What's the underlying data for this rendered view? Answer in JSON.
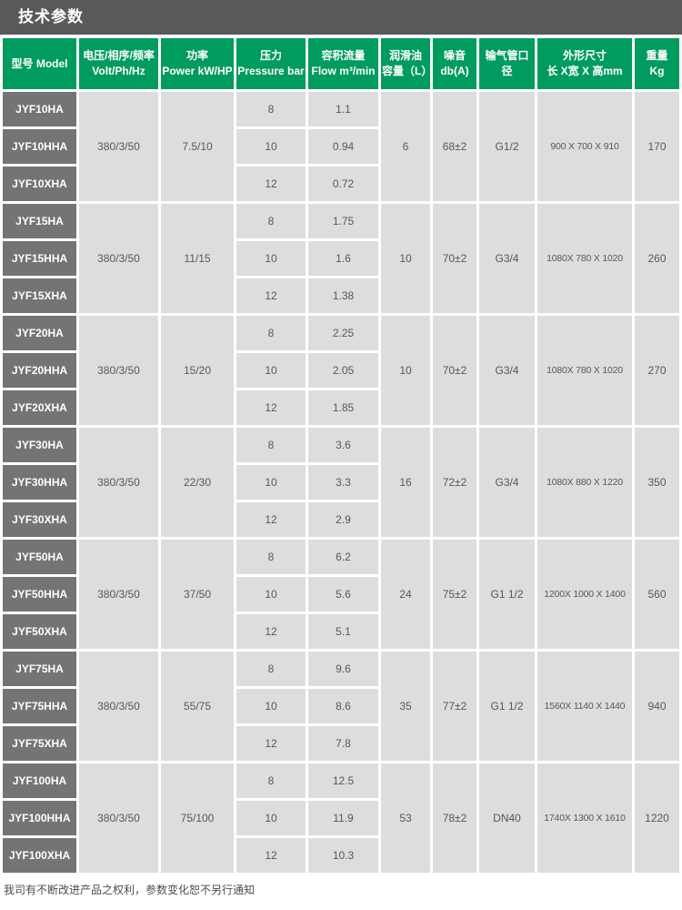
{
  "title_bar": {
    "title": "技术参数"
  },
  "footer": {
    "note": "我司有不断改进产品之权利，参数变化恕不另行通知"
  },
  "colors": {
    "title_bar_bg": "#58595B",
    "header_green": "#009B5E",
    "model_cell_bg": "#747477",
    "data_cell_bg": "#DCDDDD",
    "data_text": "#57585A",
    "footer_text": "#4C4D4F"
  },
  "table": {
    "columns": [
      {
        "id": "model",
        "lines": [
          "型号 Model"
        ]
      },
      {
        "id": "voltage",
        "lines": [
          "电压/相序/频率",
          "Volt/Ph/Hz"
        ]
      },
      {
        "id": "power",
        "lines": [
          "功率",
          "Power kW/HP"
        ]
      },
      {
        "id": "pressure",
        "lines": [
          "压力",
          "Pressure bar"
        ]
      },
      {
        "id": "flow",
        "lines": [
          "容积流量",
          "Flow m³/min"
        ]
      },
      {
        "id": "oil",
        "lines": [
          "润滑油",
          "容量（L）"
        ]
      },
      {
        "id": "noise",
        "lines": [
          "噪音",
          "db(A)"
        ]
      },
      {
        "id": "pipe",
        "lines": [
          "输气管口径"
        ]
      },
      {
        "id": "dimensions",
        "lines": [
          "外形尺寸",
          "长 X宽 X 高mm"
        ]
      },
      {
        "id": "weight",
        "lines": [
          "重量",
          "Kg"
        ]
      }
    ],
    "groups": [
      {
        "models": [
          "JYF10HA",
          "JYF10HHA",
          "JYF10XHA"
        ],
        "voltage": "380/3/50",
        "power": "7.5/10",
        "rows": [
          {
            "pressure": "8",
            "flow": "1.1"
          },
          {
            "pressure": "10",
            "flow": "0.94"
          },
          {
            "pressure": "12",
            "flow": "0.72"
          }
        ],
        "oil": "6",
        "noise": "68±2",
        "pipe": "G1/2",
        "dimensions": "900 X 700 X 910",
        "weight": "170"
      },
      {
        "models": [
          "JYF15HA",
          "JYF15HHA",
          "JYF15XHA"
        ],
        "voltage": "380/3/50",
        "power": "11/15",
        "rows": [
          {
            "pressure": "8",
            "flow": "1.75"
          },
          {
            "pressure": "10",
            "flow": "1.6"
          },
          {
            "pressure": "12",
            "flow": "1.38"
          }
        ],
        "oil": "10",
        "noise": "70±2",
        "pipe": "G3/4",
        "dimensions": "1080X 780 X 1020",
        "weight": "260"
      },
      {
        "models": [
          "JYF20HA",
          "JYF20HHA",
          "JYF20XHA"
        ],
        "voltage": "380/3/50",
        "power": "15/20",
        "rows": [
          {
            "pressure": "8",
            "flow": "2.25"
          },
          {
            "pressure": "10",
            "flow": "2.05"
          },
          {
            "pressure": "12",
            "flow": "1.85"
          }
        ],
        "oil": "10",
        "noise": "70±2",
        "pipe": "G3/4",
        "dimensions": "1080X 780 X 1020",
        "weight": "270"
      },
      {
        "models": [
          "JYF30HA",
          "JYF30HHA",
          "JYF30XHA"
        ],
        "voltage": "380/3/50",
        "power": "22/30",
        "rows": [
          {
            "pressure": "8",
            "flow": "3.6"
          },
          {
            "pressure": "10",
            "flow": "3.3"
          },
          {
            "pressure": "12",
            "flow": "2.9"
          }
        ],
        "oil": "16",
        "noise": "72±2",
        "pipe": "G3/4",
        "dimensions": "1080X 880 X 1220",
        "weight": "350"
      },
      {
        "models": [
          "JYF50HA",
          "JYF50HHA",
          "JYF50XHA"
        ],
        "voltage": "380/3/50",
        "power": "37/50",
        "rows": [
          {
            "pressure": "8",
            "flow": "6.2"
          },
          {
            "pressure": "10",
            "flow": "5.6"
          },
          {
            "pressure": "12",
            "flow": "5.1"
          }
        ],
        "oil": "24",
        "noise": "75±2",
        "pipe": "G1 1/2",
        "dimensions": "1200X 1000 X 1400",
        "weight": "560"
      },
      {
        "models": [
          "JYF75HA",
          "JYF75HHA",
          "JYF75XHA"
        ],
        "voltage": "380/3/50",
        "power": "55/75",
        "rows": [
          {
            "pressure": "8",
            "flow": "9.6"
          },
          {
            "pressure": "10",
            "flow": "8.6"
          },
          {
            "pressure": "12",
            "flow": "7.8"
          }
        ],
        "oil": "35",
        "noise": "77±2",
        "pipe": "G1 1/2",
        "dimensions": "1560X 1140 X 1440",
        "weight": "940"
      },
      {
        "models": [
          "JYF100HA",
          "JYF100HHA",
          "JYF100XHA"
        ],
        "voltage": "380/3/50",
        "power": "75/100",
        "rows": [
          {
            "pressure": "8",
            "flow": "12.5"
          },
          {
            "pressure": "10",
            "flow": "11.9"
          },
          {
            "pressure": "12",
            "flow": "10.3"
          }
        ],
        "oil": "53",
        "noise": "78±2",
        "pipe": "DN40",
        "dimensions": "1740X 1300 X 1610",
        "weight": "1220"
      }
    ]
  }
}
